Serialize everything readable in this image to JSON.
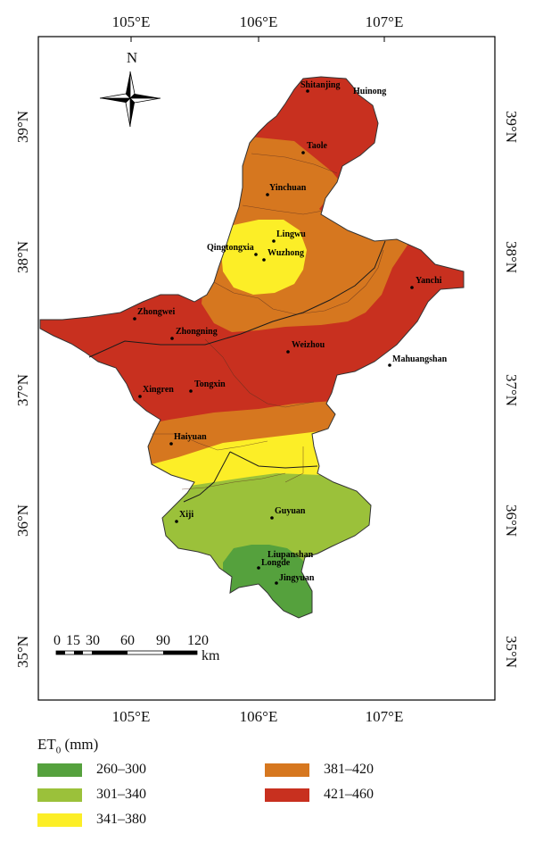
{
  "map": {
    "lon_labels": [
      "105°E",
      "106°E",
      "107°E"
    ],
    "lat_labels": [
      "39°N",
      "38°N",
      "37°N",
      "36°N",
      "35°N"
    ],
    "north_label": "N",
    "scale_bar": {
      "ticks": [
        "0",
        "15",
        "30",
        "60",
        "90",
        "120"
      ],
      "unit": "km"
    },
    "cities": [
      {
        "name": "Shitanjing"
      },
      {
        "name": "Huinong"
      },
      {
        "name": "Taole"
      },
      {
        "name": "Yinchuan"
      },
      {
        "name": "Lingwu"
      },
      {
        "name": "Qingtongxia"
      },
      {
        "name": "Wuzhong"
      },
      {
        "name": "Yanchi"
      },
      {
        "name": "Zhongwei"
      },
      {
        "name": "Zhongning"
      },
      {
        "name": "Weizhou"
      },
      {
        "name": "Mahuangshan"
      },
      {
        "name": "Xingren"
      },
      {
        "name": "Tongxin"
      },
      {
        "name": "Haiyuan"
      },
      {
        "name": "Xiji"
      },
      {
        "name": "Guyuan"
      },
      {
        "name": "Liupanshan"
      },
      {
        "name": "Longde"
      },
      {
        "name": "Jingyuan"
      }
    ]
  },
  "legend": {
    "title_main": "ET",
    "title_sub": "0",
    "title_unit": " (mm)",
    "items": [
      {
        "label": "260–300",
        "color": "#55a13d"
      },
      {
        "label": "301–340",
        "color": "#9bc13a"
      },
      {
        "label": "341–380",
        "color": "#fcee27"
      },
      {
        "label": "381–420",
        "color": "#d6771f"
      },
      {
        "label": "421–460",
        "color": "#c8301f"
      }
    ]
  }
}
